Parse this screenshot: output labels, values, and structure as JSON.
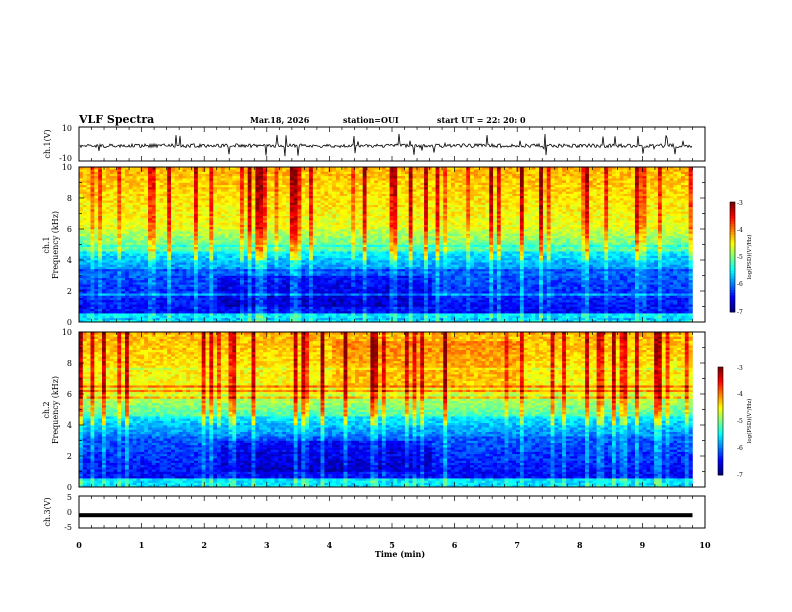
{
  "header": {
    "title": "VLF Spectra",
    "date": "Mar.18, 2026",
    "station": "station=OUI",
    "start": "start  UT =  22: 20: 0"
  },
  "chart_data": [
    {
      "type": "line",
      "panel": "ch1",
      "ylabel": "ch.1(V)",
      "ylim": [
        -10,
        10
      ],
      "yticks": [
        "10",
        "-10"
      ],
      "xlim": [
        0,
        10
      ],
      "description_series": "raw waveform, mean about -1 V"
    },
    {
      "type": "heatmap",
      "panel": "spec1",
      "ylabel": "ch.1",
      "ylabel2": "Frequency  (kHz)",
      "ylim": [
        0,
        10
      ],
      "yticks": [
        "0",
        "2",
        "4",
        "6",
        "8",
        "10"
      ],
      "xlim": [
        0,
        10
      ],
      "data_end_min": 9.8,
      "colorbar": {
        "label": "log(PSD)(V²/Hz)",
        "range": [
          -7,
          -3
        ],
        "ticks": [
          "-3",
          "-4",
          "-5",
          "-6",
          "-7"
        ]
      }
    },
    {
      "type": "heatmap",
      "panel": "spec2",
      "ylabel": "ch.2",
      "ylabel2": "Frequency  (kHz)",
      "ylim": [
        0,
        10
      ],
      "yticks": [
        "0",
        "2",
        "4",
        "6",
        "8",
        "10"
      ],
      "xlim": [
        0,
        10
      ],
      "data_end_min": 9.8,
      "colorbar": {
        "label": "log(PSD)(V²/Hz)",
        "range": [
          -7,
          -3
        ],
        "ticks": [
          "-3",
          "-4",
          "-5",
          "-6",
          "-7"
        ]
      }
    },
    {
      "type": "line",
      "panel": "ch3",
      "ylabel": "ch.3(V)",
      "ylim": [
        -5,
        5
      ],
      "yticks": [
        "5",
        "0",
        "-5"
      ],
      "xlim": [
        0,
        10
      ],
      "value": -1
    }
  ],
  "xaxis": {
    "label": "Time  (min)",
    "ticks": [
      "0",
      "1",
      "2",
      "3",
      "4",
      "5",
      "6",
      "7",
      "8",
      "9",
      "10"
    ]
  }
}
